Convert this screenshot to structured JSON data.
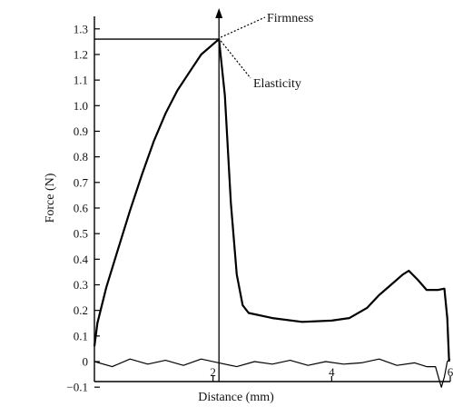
{
  "chart_data": {
    "type": "line",
    "xlabel": "Distance (mm)",
    "ylabel": "Force (N)",
    "xlim": [
      0,
      6
    ],
    "ylim": [
      -0.1,
      1.3
    ],
    "x_ticks": [
      "2",
      "4",
      "6"
    ],
    "y_ticks": [
      "−0.1",
      "0",
      "0.1",
      "0.2",
      "0.3",
      "0.4",
      "0.5",
      "0.6",
      "0.7",
      "0.8",
      "0.9",
      "1.0",
      "1.1",
      "1.2",
      "1.3"
    ],
    "grid": false,
    "series": [
      {
        "values_x": [
          0,
          0.05,
          0.2,
          0.4,
          0.6,
          0.8,
          1.0,
          1.2,
          1.4,
          1.6,
          1.8,
          2.0,
          2.1,
          2.2,
          2.3,
          2.4,
          2.5,
          2.6,
          3.0,
          3.5,
          4.0,
          4.3,
          4.6,
          4.8,
          5.0,
          5.2,
          5.3,
          5.45,
          5.6,
          5.8,
          5.9,
          5.95,
          5.98
        ],
        "values_y": [
          0.06,
          0.15,
          0.29,
          0.44,
          0.59,
          0.73,
          0.86,
          0.97,
          1.06,
          1.13,
          1.2,
          1.24,
          1.26,
          1.04,
          0.62,
          0.34,
          0.22,
          0.19,
          0.17,
          0.155,
          0.16,
          0.17,
          0.21,
          0.26,
          0.3,
          0.34,
          0.355,
          0.32,
          0.28,
          0.28,
          0.285,
          0.17,
          0.0
        ]
      },
      {
        "values_x": [
          0,
          0.3,
          0.6,
          0.9,
          1.2,
          1.5,
          1.8,
          2.1,
          2.4,
          2.7,
          3.0,
          3.3,
          3.6,
          3.9,
          4.2,
          4.5,
          4.8,
          5.1,
          5.4,
          5.6,
          5.75,
          5.8,
          5.85,
          5.9,
          5.95,
          6.0
        ],
        "values_y": [
          0.0,
          -0.02,
          0.01,
          -0.01,
          0.005,
          -0.015,
          0.01,
          -0.005,
          -0.02,
          0.0,
          -0.01,
          0.005,
          -0.015,
          0.0,
          -0.01,
          -0.005,
          0.01,
          -0.015,
          -0.005,
          -0.02,
          -0.02,
          -0.06,
          -0.1,
          -0.06,
          0.0,
          0.01
        ]
      }
    ],
    "peak": {
      "x": 2.1,
      "y": 1.26
    },
    "annotations": {
      "firmness": "Firmness",
      "elasticity": "Elasticity"
    }
  }
}
